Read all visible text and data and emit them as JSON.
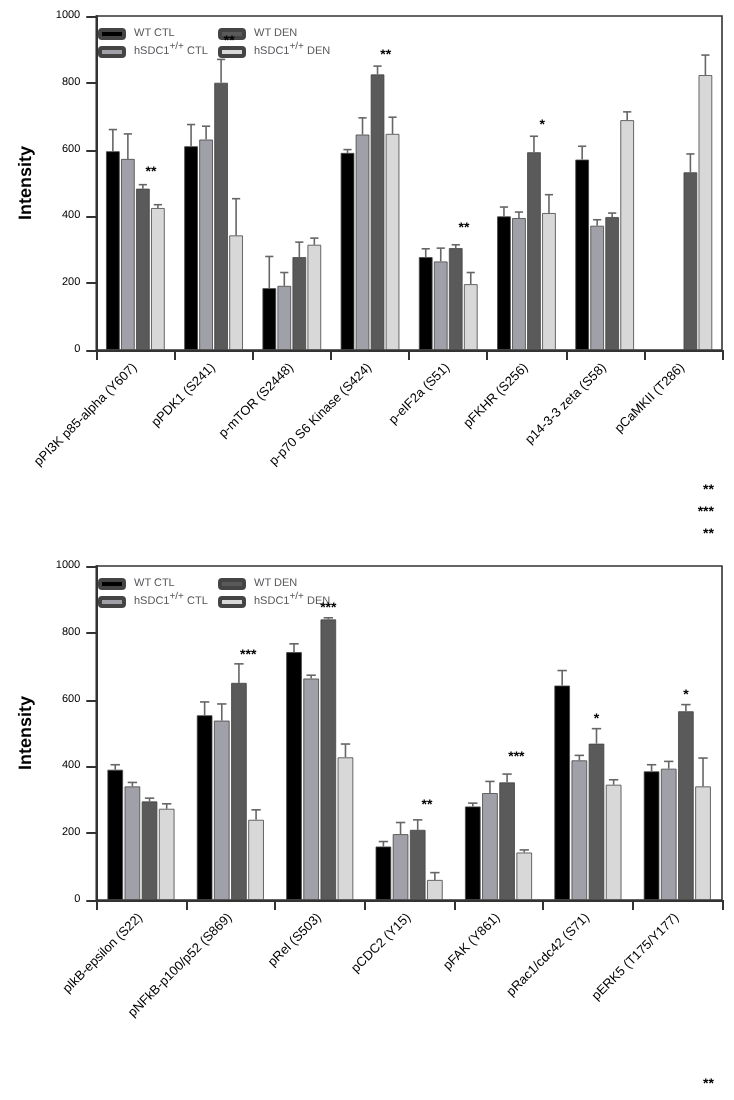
{
  "chart_data": [
    {
      "type": "bar",
      "ylabel": "Intensity",
      "categories": [
        "pPI3K p85-alpha (Y607)",
        "pPDK1 (S241)",
        "p-mTOR (S2448)",
        "p-p70 S6 Kinase (S424)",
        "p-eIF2a (S51)",
        "pFKHR (S256)",
        "p14-3-3 zeta (S58)",
        "pCaMKII (T286)"
      ],
      "series": [
        {
          "name": "WT CTL",
          "color": "#000000",
          "values": [
            595,
            610,
            185,
            590,
            278,
            400,
            570,
            null
          ],
          "errors": [
            65,
            65,
            95,
            10,
            25,
            28,
            40,
            null
          ]
        },
        {
          "name": "hSDC1$^{+/+}$ CTL",
          "color": "#a0a0a8",
          "values": [
            572,
            630,
            192,
            645,
            265,
            395,
            372,
            null
          ],
          "errors": [
            75,
            40,
            40,
            50,
            40,
            18,
            18,
            null
          ]
        },
        {
          "name": "WT DEN",
          "color": "#5a5a5a",
          "values": [
            483,
            800,
            278,
            825,
            305,
            592,
            398,
            532
          ],
          "errors": [
            12,
            70,
            45,
            25,
            10,
            48,
            12,
            55
          ]
        },
        {
          "name": "hSDC1$^{+/+}$ DEN",
          "color": "#d8d8d8",
          "values": [
            425,
            343,
            315,
            647,
            197,
            410,
            688,
            823
          ],
          "errors": [
            10,
            110,
            20,
            50,
            35,
            55,
            25,
            60
          ]
        }
      ],
      "ylim": [
        0,
        1000
      ],
      "yticks": [
        0,
        200,
        400,
        600,
        800,
        1000
      ],
      "legend": "top left",
      "grid": false,
      "annotations": [
        {
          "text": "**",
          "x": "pPI3K p85-alpha (Y607)",
          "y": 510
        },
        {
          "text": "**",
          "x": "pPDK1 (S241)",
          "y": 900
        },
        {
          "text": "**",
          "x": "p-p70 S6 Kinase (S424)",
          "y": 860
        },
        {
          "text": "**",
          "x": "p-eIF2a (S51)",
          "y": 340
        },
        {
          "text": "*",
          "x": "pFKHR (S256)",
          "y": 650
        },
        "**",
        "***",
        "**"
      ]
    },
    {
      "type": "bar",
      "ylabel": "Intensity",
      "categories": [
        "pIkB-epsilon (S22)",
        "pNFkB-p100/p52 (S869)",
        "pRel (S503)",
        "pCDC2 (Y15)",
        "pFAK (Y861)",
        "pRac1/cdc42 (S71)",
        "pERK5 (T175/Y177)"
      ],
      "series": [
        {
          "name": "WT CTL",
          "color": "#000000",
          "values": [
            390,
            553,
            742,
            160,
            280,
            642,
            385
          ],
          "errors": [
            15,
            40,
            25,
            15,
            10,
            45,
            20
          ]
        },
        {
          "name": "hSDC1$^{+/+}$ CTL",
          "color": "#a0a0a8",
          "values": [
            340,
            537,
            663,
            197,
            320,
            418,
            393
          ],
          "errors": [
            12,
            50,
            10,
            35,
            35,
            15,
            22
          ]
        },
        {
          "name": "WT DEN",
          "color": "#5a5a5a",
          "values": [
            295,
            650,
            840,
            210,
            352,
            468,
            565
          ],
          "errors": [
            10,
            57,
            5,
            30,
            25,
            45,
            20
          ]
        },
        {
          "name": "hSDC1$^{+/+}$ DEN",
          "color": "#d8d8d8",
          "values": [
            273,
            240,
            427,
            60,
            142,
            345,
            340
          ],
          "errors": [
            15,
            30,
            40,
            22,
            8,
            15,
            85
          ]
        }
      ],
      "ylim": [
        0,
        1000
      ],
      "yticks": [
        0,
        200,
        400,
        600,
        800,
        1000
      ],
      "legend": "top left",
      "grid": false,
      "annotations": [
        {
          "text": "***",
          "x": "pNFkB-p100/p52 (S869)",
          "y": 710
        },
        {
          "text": "***",
          "x": "pRel (S503)",
          "y": 845
        },
        {
          "text": "**",
          "x": "pCDC2 (Y15)",
          "y": 260
        },
        {
          "text": "***",
          "x": "pFAK (Y861)",
          "y": 405
        },
        "**",
        {
          "text": "*",
          "x": "pRac1/cdc42 (S71)",
          "y": 513
        },
        {
          "text": "*",
          "x": "pERK5 (T175/Y177)",
          "y": 585
        }
      ]
    }
  ]
}
